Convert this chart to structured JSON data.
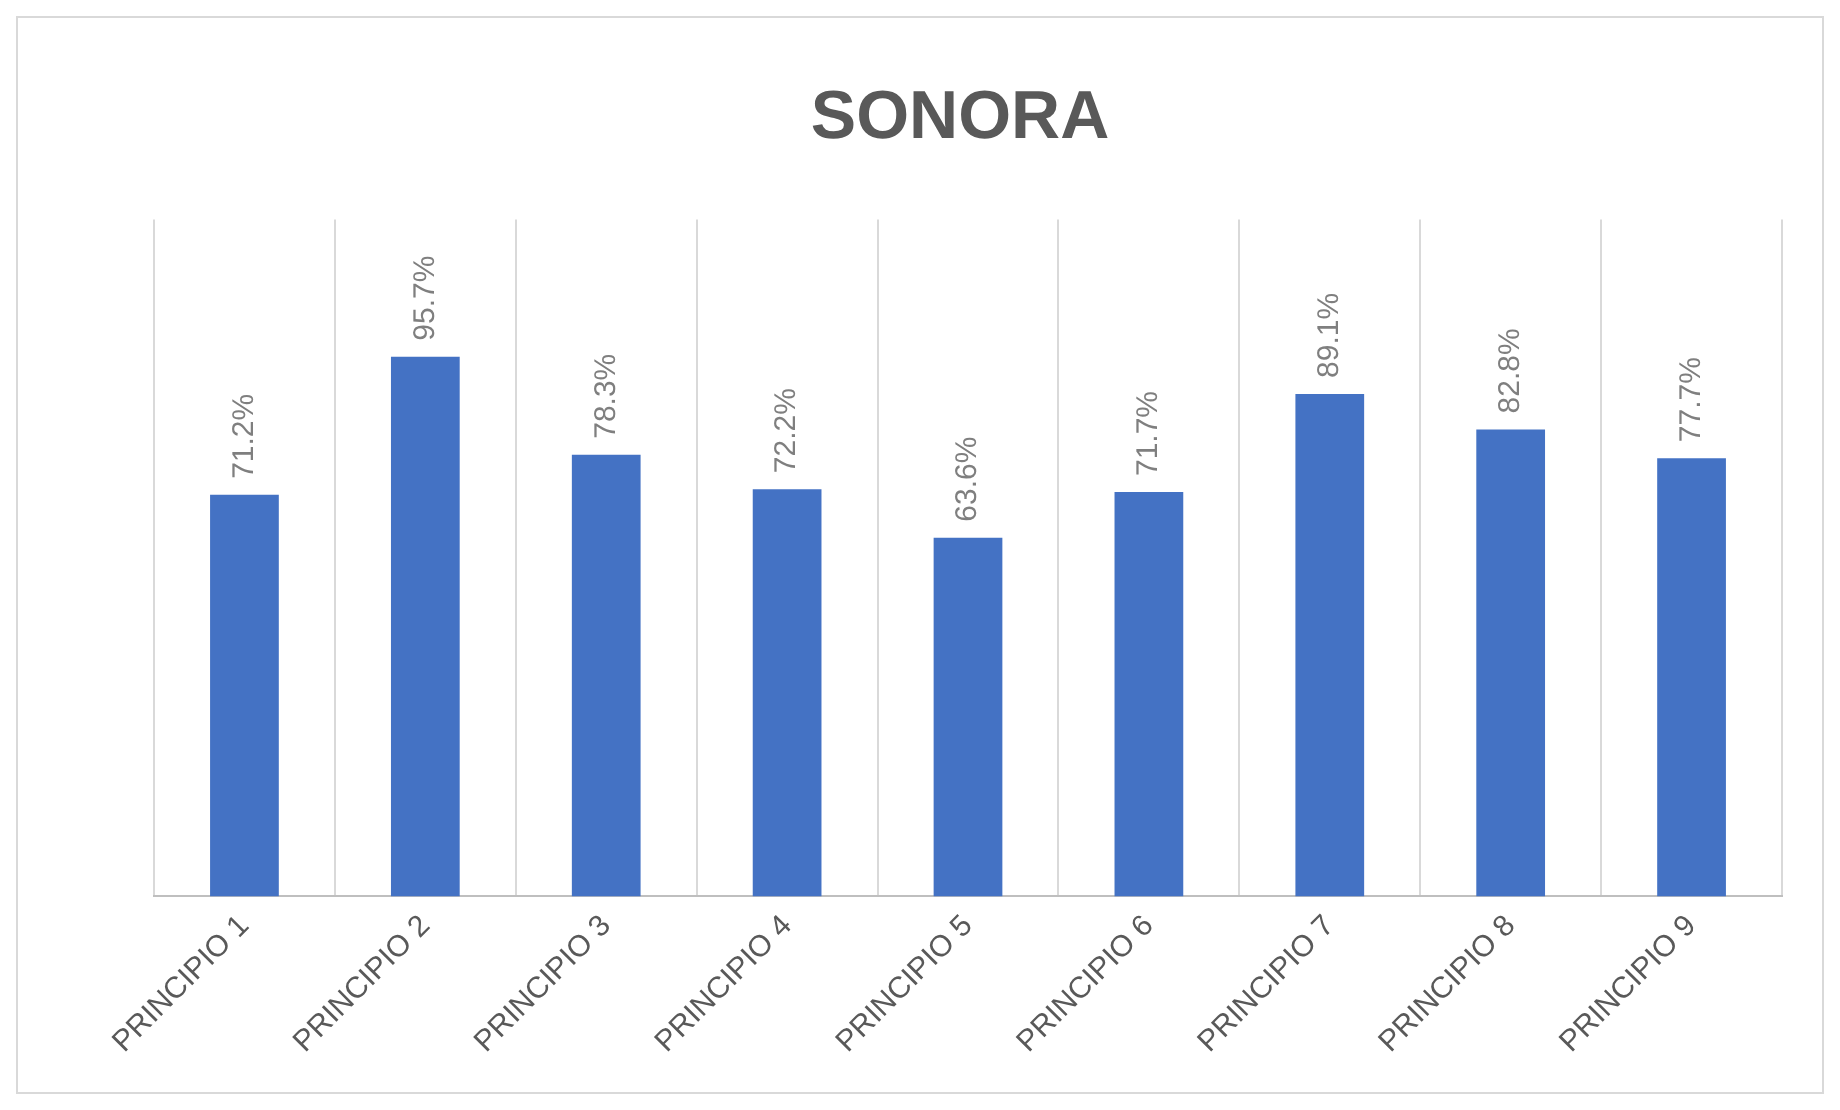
{
  "chart_data": {
    "type": "bar",
    "title": "SONORA",
    "categories": [
      "PRINCIPIO 1",
      "PRINCIPIO 2",
      "PRINCIPIO 3",
      "PRINCIPIO 4",
      "PRINCIPIO 5",
      "PRINCIPIO 6",
      "PRINCIPIO 7",
      "PRINCIPIO 8",
      "PRINCIPIO 9"
    ],
    "values": [
      71.2,
      95.7,
      78.3,
      72.2,
      63.6,
      71.7,
      89.1,
      82.8,
      77.7
    ],
    "value_labels": [
      "71.2%",
      "95.7%",
      "78.3%",
      "72.2%",
      "63.6%",
      "71.7%",
      "89.1%",
      "82.8%",
      "77.7%"
    ],
    "color": "#4472c4",
    "ylim": [
      0,
      120
    ],
    "grid": "x",
    "legend": false
  }
}
